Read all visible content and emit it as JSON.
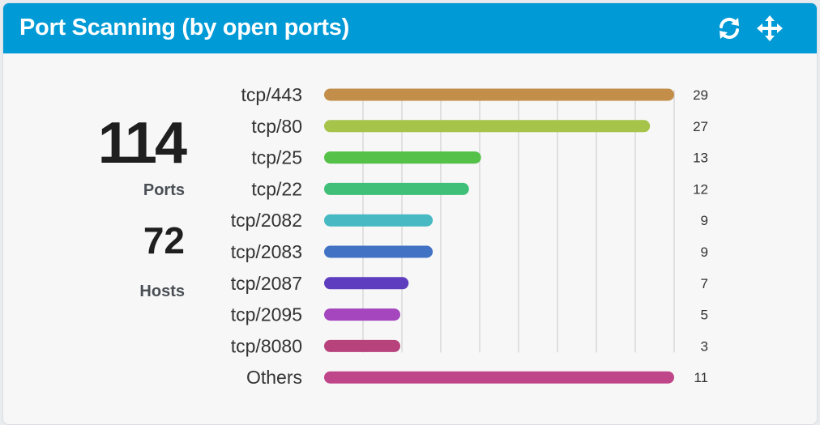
{
  "widget": {
    "title": "Port Scanning (by open ports)",
    "refresh_icon": "refresh-icon",
    "move_icon": "move-arrows-icon"
  },
  "stats": {
    "ports_value": "114",
    "ports_label": "Ports",
    "hosts_value": "72",
    "hosts_label": "Hosts"
  },
  "colors": {
    "header": "#009ad6",
    "grid": "#c8c8c8"
  },
  "chart_data": {
    "type": "bar",
    "orientation": "horizontal",
    "categories": [
      "tcp/443",
      "tcp/80",
      "tcp/25",
      "tcp/22",
      "tcp/2082",
      "tcp/2083",
      "tcp/2087",
      "tcp/2095",
      "tcp/8080",
      "Others"
    ],
    "values": [
      29,
      27,
      13,
      12,
      9,
      9,
      7,
      5,
      3,
      11
    ],
    "colors": [
      "#c28e4a",
      "#a6c34a",
      "#55c148",
      "#3fbf77",
      "#47b9c2",
      "#4172c4",
      "#5f3dbf",
      "#a546bf",
      "#b8437c",
      "#c0468a"
    ],
    "xlim": [
      0,
      29
    ],
    "grid": true,
    "data_labels": true
  }
}
